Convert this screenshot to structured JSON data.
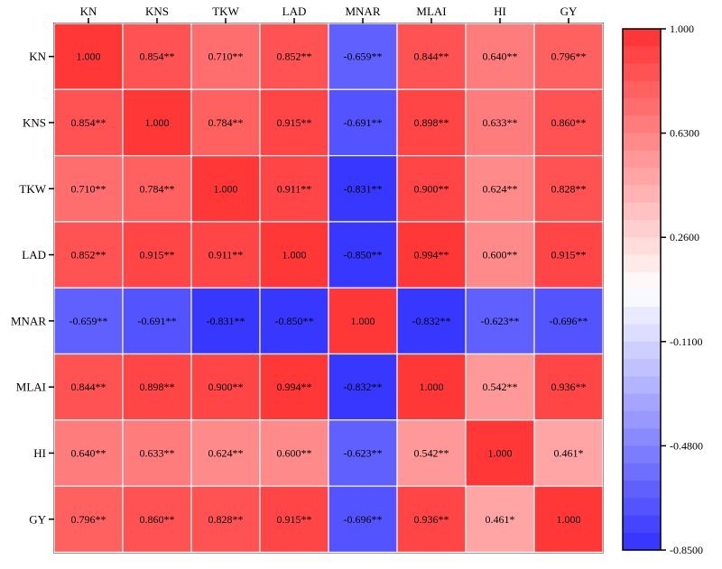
{
  "chart_data": {
    "type": "heatmap",
    "title": "",
    "variables": [
      "KN",
      "KNS",
      "TKW",
      "LAD",
      "MNAR",
      "MLAI",
      "HI",
      "GY"
    ],
    "values": [
      [
        1.0,
        0.854,
        0.71,
        0.852,
        -0.659,
        0.844,
        0.64,
        0.796
      ],
      [
        0.854,
        1.0,
        0.784,
        0.915,
        -0.691,
        0.898,
        0.633,
        0.86
      ],
      [
        0.71,
        0.784,
        1.0,
        0.911,
        -0.831,
        0.9,
        0.624,
        0.828
      ],
      [
        0.852,
        0.915,
        0.911,
        1.0,
        -0.85,
        0.994,
        0.6,
        0.915
      ],
      [
        -0.659,
        -0.691,
        -0.831,
        -0.85,
        1.0,
        -0.832,
        -0.623,
        -0.696
      ],
      [
        0.844,
        0.898,
        0.9,
        0.994,
        -0.832,
        1.0,
        0.542,
        0.936
      ],
      [
        0.64,
        0.633,
        0.624,
        0.6,
        -0.623,
        0.542,
        1.0,
        0.461
      ],
      [
        0.796,
        0.86,
        0.828,
        0.915,
        -0.696,
        0.936,
        0.461,
        1.0
      ]
    ],
    "labels": [
      [
        "1.000",
        "0.854**",
        "0.710**",
        "0.852**",
        "-0.659**",
        "0.844**",
        "0.640**",
        "0.796**"
      ],
      [
        "0.854**",
        "1.000",
        "0.784**",
        "0.915**",
        "-0.691**",
        "0.898**",
        "0.633**",
        "0.860**"
      ],
      [
        "0.710**",
        "0.784**",
        "1.000",
        "0.911**",
        "-0.831**",
        "0.900**",
        "0.624**",
        "0.828**"
      ],
      [
        "0.852**",
        "0.915**",
        "0.911**",
        "1.000",
        "-0.850**",
        "0.994**",
        "0.600**",
        "0.915**"
      ],
      [
        "-0.659**",
        "-0.691**",
        "-0.831**",
        "-0.850**",
        "1.000",
        "-0.832**",
        "-0.623**",
        "-0.696**"
      ],
      [
        "0.844**",
        "0.898**",
        "0.900**",
        "0.994**",
        "-0.832**",
        "1.000",
        "0.542**",
        "0.936**"
      ],
      [
        "0.640**",
        "0.633**",
        "0.624**",
        "0.600**",
        "-0.623**",
        "0.542**",
        "1.000",
        "0.461*"
      ],
      [
        "0.796**",
        "0.860**",
        "0.828**",
        "0.915**",
        "-0.696**",
        "0.936**",
        "0.461*",
        "1.000"
      ]
    ],
    "colorbar": {
      "min": -0.85,
      "max": 1.0,
      "ticks": [
        1.0,
        0.63,
        0.26,
        -0.11,
        -0.48,
        -0.85
      ],
      "tick_labels": [
        "1.000",
        "0.6300",
        "0.2600",
        "-0.1100",
        "-0.4800",
        "-0.8500"
      ],
      "low_color": "#3030FF",
      "mid_color": "#FFFFFF",
      "high_color": "#FF3030",
      "steps": 30
    },
    "legend_placement": "right",
    "grid": true
  }
}
